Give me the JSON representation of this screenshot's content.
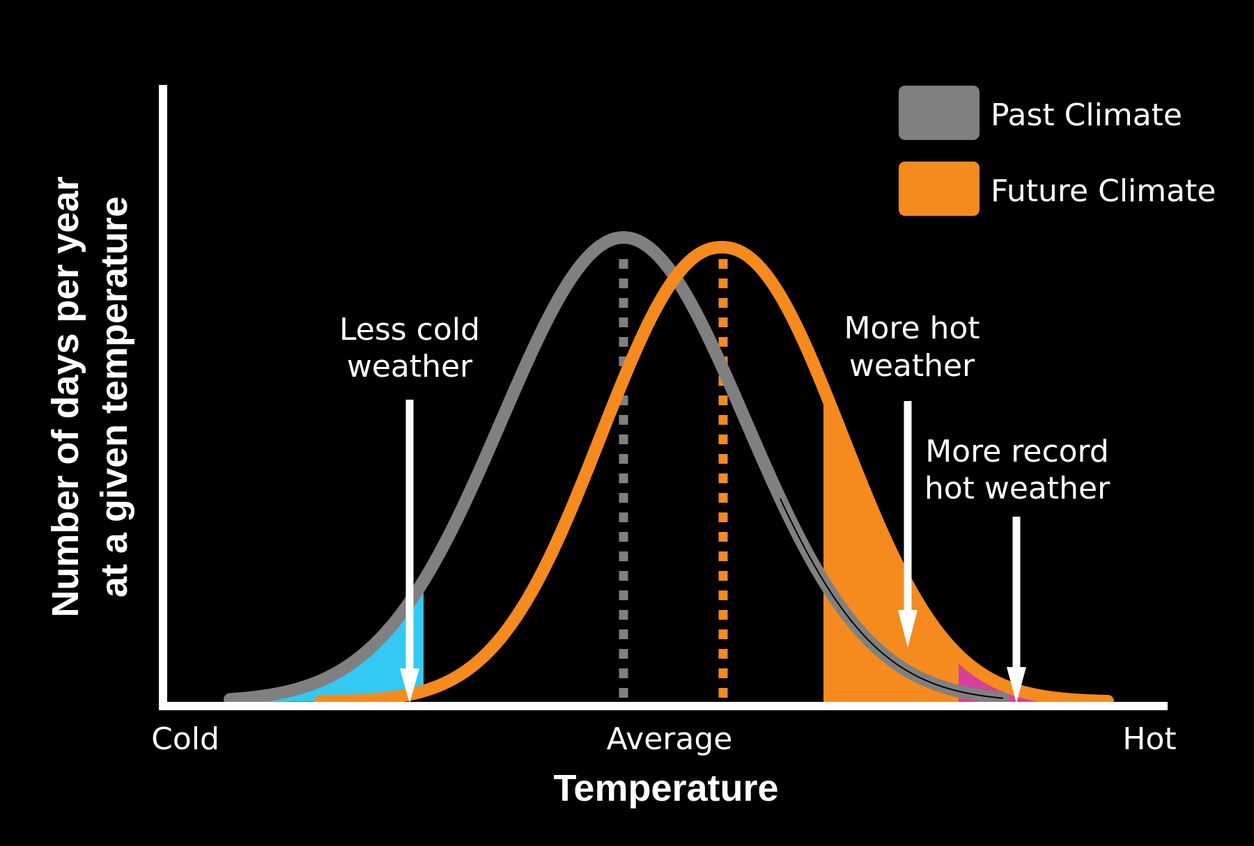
{
  "colors": {
    "background": "#000000",
    "past_climate": "#808080",
    "future_climate": "#f58a1f",
    "less_cold_fill": "#33c9f2",
    "more_hot_fill": "#f58a1f",
    "record_hot_fill": "#d6409a",
    "axis": "#ffffff",
    "text": "#ffffff"
  },
  "legend": {
    "items": [
      {
        "label": "Past Climate",
        "color": "#808080"
      },
      {
        "label": "Future Climate",
        "color": "#f58a1f"
      }
    ]
  },
  "x_axis": {
    "title": "Temperature",
    "tick_labels": {
      "cold": "Cold",
      "average": "Average",
      "hot": "Hot"
    }
  },
  "y_axis": {
    "title_line1": "Number of days per year",
    "title_line2": "at a given temperature"
  },
  "annotations": {
    "less_cold": {
      "line1": "Less cold",
      "line2": "weather"
    },
    "more_hot": {
      "line1": "More hot",
      "line2": "weather"
    },
    "record_hot": {
      "line1": "More record",
      "line2": "hot weather"
    }
  }
}
